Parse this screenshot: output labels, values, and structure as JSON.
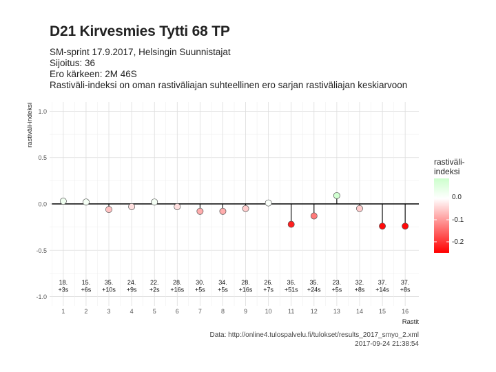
{
  "header": {
    "title": "D21 Kirvesmies Tytti 68 TP",
    "subtitle_lines": [
      "SM-sprint 17.9.2017, Helsingin Suunnistajat",
      "Sijoitus: 36",
      "Ero kärkeen: 2M 46S",
      "Rastiväli-indeksi on oman rastiväliajan suhteellinen ero sarjan rastiväliajan keskiarvoon"
    ]
  },
  "caption": {
    "source": "Data: http://online4.tulospalvelu.fi/tulokset/results_2017_smyo_2.xml",
    "timestamp": "2017-09-24 21:38:54"
  },
  "legend": {
    "title_line1": "rastiväli-",
    "title_line2": "indeksi",
    "labels": [
      "0.0",
      "-0.1",
      "-0.2"
    ],
    "colors": {
      "high": "#ccffcc",
      "mid": "#ffffff",
      "low": "#ff0000"
    }
  },
  "chart_data": {
    "type": "scatter",
    "xlabel": "Rastit",
    "ylabel": "rastiväli-indeksi",
    "ylim": [
      -1.0,
      1.0
    ],
    "y_ticks": [
      "-1.0",
      "-0.5",
      "0.0",
      "0.5",
      "1.0"
    ],
    "x_ticks": [
      "1",
      "2",
      "3",
      "4",
      "5",
      "6",
      "7",
      "8",
      "9",
      "10",
      "11",
      "12",
      "13",
      "14",
      "15",
      "16"
    ],
    "grid": true,
    "x": [
      1,
      2,
      3,
      4,
      5,
      6,
      7,
      8,
      9,
      10,
      11,
      12,
      13,
      14,
      15,
      16
    ],
    "values": [
      0.03,
      0.02,
      -0.06,
      -0.03,
      0.02,
      -0.03,
      -0.08,
      -0.08,
      -0.05,
      0.01,
      -0.22,
      -0.13,
      0.09,
      -0.05,
      -0.24,
      -0.24
    ],
    "annotations": [
      {
        "rank": "18.",
        "diff": "+3s"
      },
      {
        "rank": "15.",
        "diff": "+6s"
      },
      {
        "rank": "35.",
        "diff": "+10s"
      },
      {
        "rank": "24.",
        "diff": "+9s"
      },
      {
        "rank": "22.",
        "diff": "+2s"
      },
      {
        "rank": "28.",
        "diff": "+16s"
      },
      {
        "rank": "30.",
        "diff": "+5s"
      },
      {
        "rank": "34.",
        "diff": "+5s"
      },
      {
        "rank": "28.",
        "diff": "+16s"
      },
      {
        "rank": "26.",
        "diff": "+7s"
      },
      {
        "rank": "36.",
        "diff": "+51s"
      },
      {
        "rank": "35.",
        "diff": "+24s"
      },
      {
        "rank": "23.",
        "diff": "+5s"
      },
      {
        "rank": "32.",
        "diff": "+8s"
      },
      {
        "rank": "37.",
        "diff": "+14s"
      },
      {
        "rank": "37.",
        "diff": "+8s"
      }
    ]
  }
}
